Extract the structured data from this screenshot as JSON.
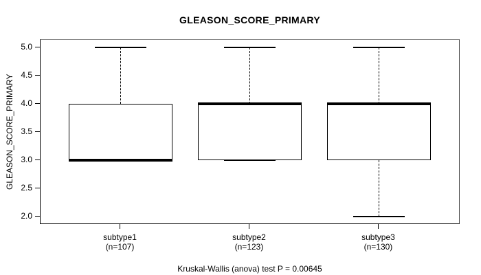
{
  "chart_data": {
    "type": "boxplot",
    "title": "GLEASON_SCORE_PRIMARY",
    "ylabel": "GLEASON_SCORE_PRIMARY",
    "xlabel": "",
    "annotation": "Kruskal-Wallis (anova) test P = 0.00645",
    "grid": false,
    "legend": false,
    "ylim": [
      1.88,
      5.14
    ],
    "xlim": [
      0.38,
      3.62
    ],
    "box_width": 0.8,
    "staple_width": 0.4,
    "yticks": [
      {
        "value": 2.0,
        "label": "2.0"
      },
      {
        "value": 2.5,
        "label": "2.5"
      },
      {
        "value": 3.0,
        "label": "3.0"
      },
      {
        "value": 3.5,
        "label": "3.5"
      },
      {
        "value": 4.0,
        "label": "4.0"
      },
      {
        "value": 4.5,
        "label": "4.5"
      },
      {
        "value": 5.0,
        "label": "5.0"
      }
    ],
    "categories": [
      "subtype1",
      "subtype2",
      "subtype3"
    ],
    "groups": [
      {
        "label": "subtype1",
        "n_label": "(n=107)",
        "n": 107,
        "q1": 3.0,
        "median": 3.0,
        "q3": 4.0,
        "whisker_low": 3.0,
        "whisker_high": 5.0
      },
      {
        "label": "subtype2",
        "n_label": "(n=123)",
        "n": 123,
        "q1": 3.0,
        "median": 4.0,
        "q3": 4.0,
        "whisker_low": 3.0,
        "whisker_high": 5.0
      },
      {
        "label": "subtype3",
        "n_label": "(n=130)",
        "n": 130,
        "q1": 3.0,
        "median": 4.0,
        "q3": 4.0,
        "whisker_low": 2.0,
        "whisker_high": 5.0
      }
    ]
  }
}
